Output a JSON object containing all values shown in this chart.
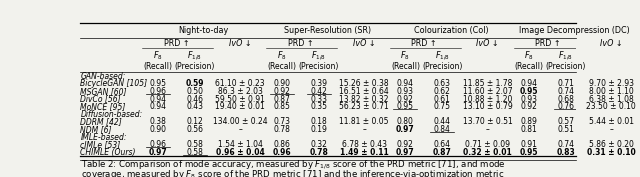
{
  "section_headers": [
    "Night-to-day",
    "Super-Resolution (SR)",
    "Colourization (Col)",
    "Image Decompression (DC)"
  ],
  "rows": [
    {
      "name": "BicycleGAN [105]",
      "cat": "GAN-based:",
      "ntd": [
        "0.95",
        "0.59",
        "61.10 ± 0.23"
      ],
      "sr": [
        "0.90",
        "0.39",
        "15.26 ± 0.38"
      ],
      "col": [
        "0.94",
        "0.63",
        "11.85 ± 1.78"
      ],
      "dc": [
        "0.94",
        "0.71",
        "9.70 ± 2.93"
      ],
      "bold_ntd": [
        false,
        true,
        false
      ],
      "bold_sr": [
        false,
        false,
        false
      ],
      "bold_col": [
        false,
        false,
        false
      ],
      "bold_dc": [
        false,
        false,
        false
      ],
      "under_ntd": [
        false,
        false,
        false
      ],
      "under_sr": [
        false,
        false,
        false
      ],
      "under_col": [
        false,
        false,
        false
      ],
      "under_dc": [
        false,
        false,
        false
      ]
    },
    {
      "name": "MSGAN [60]",
      "cat": "GAN-based:",
      "ntd": [
        "0.96",
        "0.50",
        "86.3 ± 2.03"
      ],
      "sr": [
        "0.92",
        "0.42",
        "16.51 ± 0.64"
      ],
      "col": [
        "0.93",
        "0.62",
        "11.60 ± 2.07"
      ],
      "dc": [
        "0.95",
        "0.74",
        "8.00 ± 1.10"
      ],
      "bold_ntd": [
        false,
        false,
        false
      ],
      "bold_sr": [
        false,
        false,
        false
      ],
      "bold_col": [
        false,
        false,
        false
      ],
      "bold_dc": [
        true,
        false,
        false
      ],
      "under_ntd": [
        true,
        false,
        false
      ],
      "under_sr": [
        true,
        true,
        false
      ],
      "under_col": [
        false,
        false,
        false
      ],
      "under_dc": [
        false,
        false,
        false
      ]
    },
    {
      "name": "DivCo [56]",
      "cat": "GAN-based:",
      "ntd": [
        "0.94",
        "0.46",
        "59.50 ± 0.91"
      ],
      "sr": [
        "0.87",
        "0.33",
        "13.82 ± 0.32"
      ],
      "col": [
        "0.92",
        "0.61",
        "10.88 ± 1.20"
      ],
      "dc": [
        "0.93",
        "0.68",
        "6.38 ± 1.08"
      ],
      "bold_ntd": [
        false,
        false,
        false
      ],
      "bold_sr": [
        false,
        false,
        false
      ],
      "bold_col": [
        false,
        false,
        false
      ],
      "bold_dc": [
        false,
        false,
        false
      ],
      "under_ntd": [
        false,
        false,
        false
      ],
      "under_sr": [
        false,
        false,
        false
      ],
      "under_col": [
        false,
        false,
        false
      ],
      "under_dc": [
        false,
        false,
        false
      ]
    },
    {
      "name": "MoNCE [95]",
      "cat": "GAN-based:",
      "ntd": [
        "0.94",
        "0.43",
        "19.40 ± 0.01"
      ],
      "sr": [
        "0.85",
        "0.35",
        "56.23 ± 0.71"
      ],
      "col": [
        "0.95",
        "0.75",
        "13.10 ± 0.79"
      ],
      "dc": [
        "0.92",
        "0.76",
        "23.50 ± 0.10"
      ],
      "bold_ntd": [
        false,
        false,
        false
      ],
      "bold_sr": [
        false,
        false,
        false
      ],
      "bold_col": [
        false,
        false,
        false
      ],
      "bold_dc": [
        false,
        false,
        false
      ],
      "under_ntd": [
        false,
        false,
        false
      ],
      "under_sr": [
        false,
        false,
        false
      ],
      "under_col": [
        true,
        false,
        false
      ],
      "under_dc": [
        false,
        true,
        false
      ]
    },
    {
      "name": "DDRM [42]",
      "cat": "Diffusion-based:",
      "ntd": [
        "0.38",
        "0.12",
        "134.00 ± 0.24"
      ],
      "sr": [
        "0.73",
        "0.18",
        "11.81 ± 0.05"
      ],
      "col": [
        "0.80",
        "0.44",
        "13.70 ± 0.51"
      ],
      "dc": [
        "0.89",
        "0.57",
        "5.44 ± 0.01"
      ],
      "bold_ntd": [
        false,
        false,
        false
      ],
      "bold_sr": [
        false,
        false,
        false
      ],
      "bold_col": [
        false,
        false,
        false
      ],
      "bold_dc": [
        false,
        false,
        false
      ],
      "under_ntd": [
        false,
        false,
        false
      ],
      "under_sr": [
        false,
        false,
        false
      ],
      "under_col": [
        false,
        false,
        false
      ],
      "under_dc": [
        false,
        false,
        false
      ]
    },
    {
      "name": "NDM [6]",
      "cat": "Diffusion-based:",
      "ntd": [
        "0.90",
        "0.56",
        "–"
      ],
      "sr": [
        "0.78",
        "0.19",
        "–"
      ],
      "col": [
        "0.97",
        "0.84",
        "–"
      ],
      "dc": [
        "0.81",
        "0.51",
        "–"
      ],
      "bold_ntd": [
        false,
        false,
        false
      ],
      "bold_sr": [
        false,
        false,
        false
      ],
      "bold_col": [
        true,
        false,
        false
      ],
      "bold_dc": [
        false,
        false,
        false
      ],
      "under_ntd": [
        false,
        false,
        false
      ],
      "under_sr": [
        false,
        false,
        false
      ],
      "under_col": [
        false,
        true,
        false
      ],
      "under_dc": [
        false,
        false,
        false
      ]
    },
    {
      "name": "cIMLe [53]",
      "cat": "IMLE-based:",
      "ntd": [
        "0.96",
        "0.58",
        "1.54 ± 1.04"
      ],
      "sr": [
        "0.86",
        "0.32",
        "6.78 ± 0.43"
      ],
      "col": [
        "0.92",
        "0.64",
        "0.71 ± 0.09"
      ],
      "dc": [
        "0.91",
        "0.74",
        "5.86 ± 0.20"
      ],
      "bold_ntd": [
        false,
        false,
        false
      ],
      "bold_sr": [
        false,
        false,
        false
      ],
      "bold_col": [
        false,
        false,
        false
      ],
      "bold_dc": [
        false,
        false,
        false
      ],
      "under_ntd": [
        true,
        false,
        false
      ],
      "under_sr": [
        false,
        false,
        false
      ],
      "under_col": [
        false,
        false,
        false
      ],
      "under_dc": [
        false,
        false,
        false
      ]
    },
    {
      "name": "CHIMLE (Ours)",
      "cat": "IMLE-based:",
      "ntd": [
        "0.97",
        "0.58",
        "0.96 ± 0.04"
      ],
      "sr": [
        "0.96",
        "0.78",
        "1.49 ± 0.11"
      ],
      "col": [
        "0.97",
        "0.87",
        "0.32 ± 0.01"
      ],
      "dc": [
        "0.95",
        "0.83",
        "0.31 ± 0.10"
      ],
      "bold_ntd": [
        true,
        false,
        true
      ],
      "bold_sr": [
        true,
        true,
        true
      ],
      "bold_col": [
        true,
        true,
        true
      ],
      "bold_dc": [
        true,
        true,
        true
      ],
      "under_ntd": [
        false,
        true,
        false
      ],
      "under_sr": [
        false,
        false,
        false
      ],
      "under_col": [
        false,
        false,
        false
      ],
      "under_dc": [
        false,
        false,
        false
      ]
    }
  ],
  "bg_color": "#f2f2ed",
  "font_size": 6.2,
  "font_size_small": 5.8,
  "font_size_tiny": 5.5
}
